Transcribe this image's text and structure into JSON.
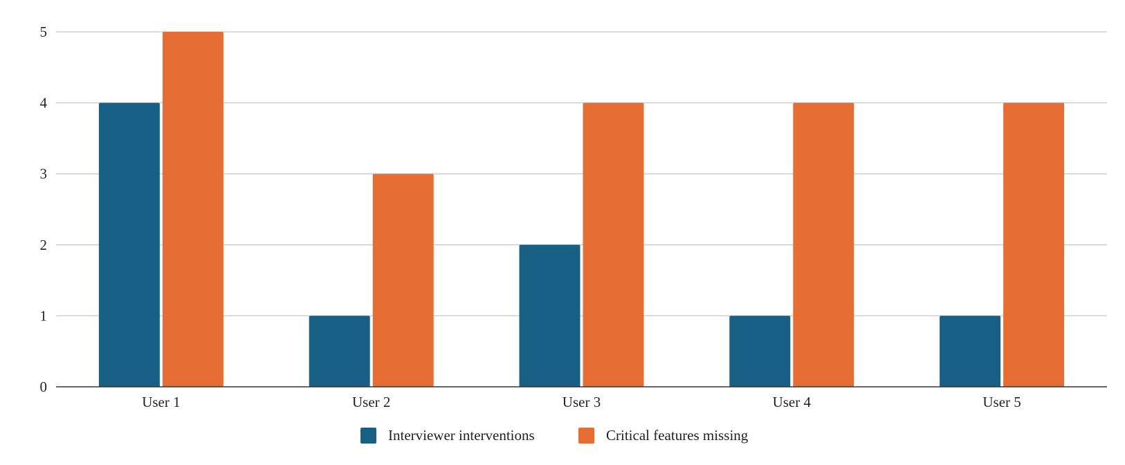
{
  "chart_data": {
    "type": "bar",
    "title": "",
    "xlabel": "",
    "ylabel": "",
    "categories": [
      "User 1",
      "User 2",
      "User 3",
      "User 4",
      "User 5"
    ],
    "series": [
      {
        "name": "Interviewer interventions",
        "color": "#175f84",
        "values": [
          4,
          1,
          2,
          1,
          1
        ]
      },
      {
        "name": "Critical features missing",
        "color": "#e66d33",
        "values": [
          5,
          3,
          4,
          4,
          4
        ]
      }
    ],
    "ylim": [
      0,
      5
    ],
    "yticks": [
      0,
      1,
      2,
      3,
      4,
      5
    ],
    "grid": true,
    "legend_position": "bottom"
  }
}
